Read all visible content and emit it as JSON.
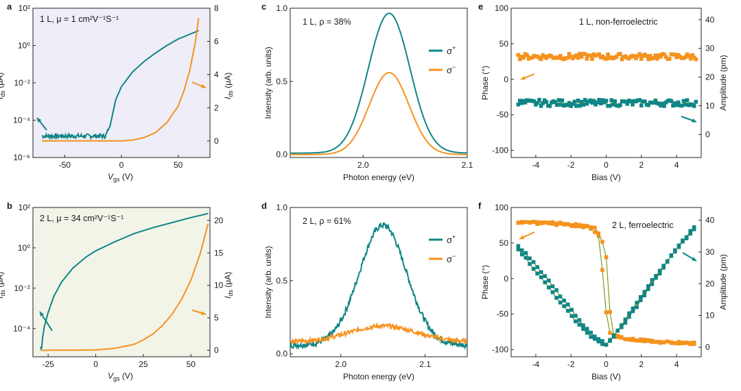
{
  "colors": {
    "teal": "#0f8585",
    "orange": "#f5921e",
    "olive": "#7a9a1a",
    "bg_fet_a": "#eeedf8",
    "bg_fet_b": "#f2f4e8",
    "axis": "#222222"
  },
  "chart_data": [
    {
      "id": "a",
      "type": "line",
      "panel_letter": "a",
      "title": "1 L, μ = 1 cm²V⁻¹S⁻¹",
      "xlabel_main": "V",
      "xlabel_sub": "gs",
      "xlabel_unit": " (V)",
      "ylabel_left_main": "I",
      "ylabel_left_sub": "ds",
      "ylabel_left_unit": " (μA)",
      "ylabel_right_main": "I",
      "ylabel_right_sub": "ds",
      "ylabel_right_unit": " (μA)",
      "xlim": [
        -78,
        78
      ],
      "ylim_left_log": [
        -6,
        2
      ],
      "ylim_right": [
        -1,
        8
      ],
      "xticks": [
        -50,
        0,
        50
      ],
      "yticks_left": [
        {
          "v": 2,
          "label": "10²"
        },
        {
          "v": 0,
          "label": "10⁰"
        },
        {
          "v": -2,
          "label": "10⁻²"
        },
        {
          "v": -4,
          "label": "10⁻⁴"
        },
        {
          "v": -6,
          "label": "10⁻⁶"
        }
      ],
      "yticks_right": [
        0,
        2,
        4,
        6,
        8
      ],
      "series": [
        {
          "name": "log Ids",
          "axis": "left",
          "color": "teal",
          "noise": 0.12,
          "noise_x_max": -12,
          "x": [
            -70,
            -14,
            -10,
            -5,
            0,
            10,
            20,
            30,
            40,
            50,
            60,
            68
          ],
          "y": [
            -4.85,
            -4.85,
            -4.3,
            -2.9,
            -2.2,
            -1.4,
            -0.85,
            -0.4,
            0.0,
            0.35,
            0.6,
            0.8
          ]
        },
        {
          "name": "linear Ids",
          "axis": "right",
          "color": "orange",
          "noise": 0,
          "x": [
            -70,
            0,
            10,
            20,
            30,
            40,
            50,
            55,
            60,
            65,
            68
          ],
          "y": [
            0,
            0,
            0.05,
            0.2,
            0.5,
            1.1,
            2.1,
            3.0,
            4.2,
            5.9,
            7.4
          ]
        }
      ],
      "arrows": [
        {
          "side": "left",
          "color": "teal"
        },
        {
          "side": "right",
          "color": "orange"
        }
      ]
    },
    {
      "id": "b",
      "type": "line",
      "panel_letter": "b",
      "title": "2 L, μ = 34 cm²V⁻¹S⁻¹",
      "xlabel_main": "V",
      "xlabel_sub": "gs",
      "xlabel_unit": " (V)",
      "ylabel_left_main": "I",
      "ylabel_left_sub": "ds",
      "ylabel_left_unit": " (μA)",
      "ylabel_right_main": "I",
      "ylabel_right_sub": "ds",
      "ylabel_right_unit": " (μA)",
      "xlim": [
        -33,
        60
      ],
      "ylim_left_log": [
        -5.4,
        2
      ],
      "ylim_right": [
        -1,
        22
      ],
      "xticks": [
        -25,
        0,
        25,
        50
      ],
      "yticks_left": [
        {
          "v": 2,
          "label": "10²"
        },
        {
          "v": 0,
          "label": "10⁰"
        },
        {
          "v": -2,
          "label": "10⁻²"
        },
        {
          "v": -4,
          "label": "10⁻⁴"
        }
      ],
      "yticks_right": [
        0,
        5,
        10,
        15,
        20
      ],
      "series": [
        {
          "name": "log Ids",
          "axis": "left",
          "color": "teal",
          "noise": 0,
          "x": [
            -29,
            -28.5,
            -28,
            -27,
            -25,
            -22,
            -18,
            -12,
            -5,
            0,
            10,
            20,
            30,
            40,
            50,
            59
          ],
          "y": [
            -4.9,
            -5.1,
            -4.5,
            -3.9,
            -3.2,
            -2.4,
            -1.7,
            -1.0,
            -0.45,
            -0.15,
            0.3,
            0.7,
            1.0,
            1.25,
            1.5,
            1.7
          ]
        },
        {
          "name": "linear Ids",
          "axis": "right",
          "color": "orange",
          "noise": 0,
          "x": [
            -29,
            0,
            10,
            20,
            25,
            30,
            35,
            40,
            45,
            50,
            55,
            59
          ],
          "y": [
            0,
            0.05,
            0.3,
            0.9,
            1.6,
            2.5,
            3.8,
            5.5,
            7.8,
            10.8,
            15.0,
            19.5
          ]
        }
      ],
      "arrows": [
        {
          "side": "left",
          "color": "teal"
        },
        {
          "side": "right",
          "color": "orange"
        }
      ]
    },
    {
      "id": "c",
      "type": "line",
      "panel_letter": "c",
      "title": "1 L, ρ = 38%",
      "xlabel": "Photon energy (eV)",
      "ylabel": "Intensity (arb. units)",
      "xlim": [
        1.93,
        2.1
      ],
      "ylim": [
        -0.02,
        1.0
      ],
      "xticks": [
        {
          "v": 2.0,
          "label": "2.0"
        },
        {
          "v": 2.1,
          "label": "2.1"
        }
      ],
      "yticks": [
        {
          "v": 0.0,
          "label": "0.0"
        },
        {
          "v": 0.5,
          "label": "0.5"
        },
        {
          "v": 1.0,
          "label": "1.0"
        }
      ],
      "legend": [
        {
          "label": "σ",
          "sup": "+",
          "color": "teal"
        },
        {
          "label": "σ",
          "sup": "−",
          "color": "orange"
        }
      ],
      "series": [
        {
          "name": "σ+",
          "color": "teal",
          "peak": {
            "x0": 2.025,
            "amp": 0.955,
            "w": 0.02,
            "base": 0.01,
            "tail": 0.002
          }
        },
        {
          "name": "σ−",
          "color": "orange",
          "peak": {
            "x0": 2.025,
            "amp": 0.56,
            "w": 0.019,
            "base": 0.0,
            "tail": 0.0
          }
        }
      ]
    },
    {
      "id": "d",
      "type": "line",
      "panel_letter": "d",
      "title": "2 L, ρ = 61%",
      "xlabel": "Photon energy (eV)",
      "ylabel": "Intensity (arb. units)",
      "xlim": [
        1.94,
        2.15
      ],
      "ylim": [
        -0.02,
        1.0
      ],
      "xticks": [
        {
          "v": 2.0,
          "label": "2.0"
        },
        {
          "v": 2.1,
          "label": "2.1"
        }
      ],
      "yticks": [
        {
          "v": 0.0,
          "label": "0.0"
        },
        {
          "v": 0.5,
          "label": "0.5"
        },
        {
          "v": 1.0,
          "label": "1.0"
        }
      ],
      "legend": [
        {
          "label": "σ",
          "sup": "+",
          "color": "teal"
        },
        {
          "label": "σ",
          "sup": "−",
          "color": "orange"
        }
      ],
      "series": [
        {
          "name": "σ+",
          "color": "teal",
          "peak": {
            "x0": 2.05,
            "amp": 0.82,
            "w": 0.028,
            "base": 0.06,
            "tail": 0.0
          },
          "noise": 0.02
        },
        {
          "name": "σ−",
          "color": "orange",
          "peak": {
            "x0": 2.05,
            "amp": 0.11,
            "w": 0.04,
            "base": 0.08,
            "tail": 0.0
          },
          "noise": 0.015
        }
      ]
    },
    {
      "id": "e",
      "type": "scatter",
      "panel_letter": "e",
      "title": "1 L, non-ferroelectric",
      "xlabel": "Bias (V)",
      "ylabel_left": "Phase (°)",
      "ylabel_right": "Amplitude (pm)",
      "xlim": [
        -5.4,
        5.4
      ],
      "ylim_left": [
        -110,
        100
      ],
      "ylim_right": [
        -8,
        44
      ],
      "xticks": [
        -4,
        -2,
        0,
        2,
        4
      ],
      "yticks_left": [
        100,
        50,
        0,
        -50,
        -100
      ],
      "yticks_right": [
        0,
        10,
        20,
        30,
        40
      ],
      "series": [
        {
          "name": "phase",
          "axis": "left",
          "color": "orange",
          "base": 32,
          "jitter": 8,
          "from": -5,
          "to": 5,
          "step": 0.2
        },
        {
          "name": "amplitude",
          "axis": "right",
          "color": "teal",
          "base": 11,
          "jitter": 2.2,
          "from": -5,
          "to": 5,
          "step": 0.2
        }
      ],
      "arrows": [
        {
          "side": "left",
          "color": "orange"
        },
        {
          "side": "right",
          "color": "teal"
        }
      ]
    },
    {
      "id": "f",
      "type": "scatter",
      "panel_letter": "f",
      "title": "2 L, ferroelectric",
      "xlabel": "Bias (V)",
      "ylabel_left": "Phase (°)",
      "ylabel_right": "Amplitude (pm)",
      "xlim": [
        -5.4,
        5.4
      ],
      "ylim_left": [
        -110,
        100
      ],
      "ylim_right": [
        -3,
        44
      ],
      "xticks": [
        -4,
        -2,
        0,
        2,
        4
      ],
      "yticks_left": [
        100,
        50,
        0,
        -50,
        -100
      ],
      "yticks_right": [
        0,
        10,
        20,
        30,
        40
      ],
      "phase_forward": {
        "x": [
          -5,
          -4,
          -3,
          -2,
          -1,
          -0.4,
          -0.1,
          0.1,
          0.5,
          1,
          2,
          3,
          4,
          5
        ],
        "y": [
          79,
          78,
          77,
          75,
          72,
          60,
          -20,
          -76,
          -80,
          -84,
          -87,
          -89,
          -90,
          -91
        ]
      },
      "phase_backward": {
        "x": [
          5,
          4,
          3,
          2,
          1,
          0.3,
          0,
          -0.3,
          -0.6,
          -1,
          -2,
          -3,
          -4,
          -5
        ],
        "y": [
          -91,
          -90,
          -89,
          -87,
          -84,
          -78,
          30,
          60,
          70,
          73,
          76,
          78,
          79,
          80
        ]
      },
      "amp_forward": {
        "x": [
          -5,
          -4,
          -3,
          -2,
          -1,
          -0.3,
          0,
          1,
          2,
          3,
          4,
          5
        ],
        "y": [
          31,
          24,
          17,
          10,
          4,
          1,
          1,
          7,
          15,
          23,
          31,
          37
        ]
      },
      "amp_backward": {
        "x": [
          5,
          4,
          3,
          2,
          1,
          0.3,
          0,
          -1,
          -2,
          -3,
          -4,
          -5
        ],
        "y": [
          38,
          31,
          24,
          16,
          8,
          2,
          1,
          5,
          12,
          19,
          26,
          32
        ]
      },
      "arrows": [
        {
          "side": "left",
          "color": "orange"
        },
        {
          "side": "right",
          "color": "teal"
        }
      ]
    }
  ]
}
